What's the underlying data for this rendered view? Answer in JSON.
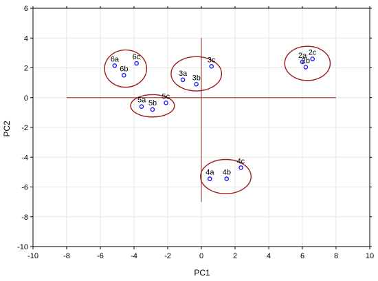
{
  "chart_data": {
    "type": "scatter",
    "title": "",
    "xlabel": "PC1",
    "ylabel": "PC2",
    "xlim": [
      -10,
      10
    ],
    "ylim": [
      -10,
      6
    ],
    "xticks": [
      -10,
      -8,
      -6,
      -4,
      -2,
      0,
      2,
      4,
      6,
      8,
      10
    ],
    "yticks": [
      -10,
      -8,
      -6,
      -4,
      -2,
      0,
      2,
      4,
      6
    ],
    "grid": true,
    "point_color": "#1a1aff",
    "ellipse_color": "#9b1c1c",
    "crosshair_color": "#a34b3a",
    "crosshair": {
      "h_x": [
        -8,
        8
      ],
      "h_y": 0,
      "v_x": 0,
      "v_y": [
        -7,
        4
      ]
    },
    "points": [
      {
        "label": "2a",
        "x": 6.0,
        "y": 2.4
      },
      {
        "label": "2b",
        "x": 6.2,
        "y": 2.05
      },
      {
        "label": "2c",
        "x": 6.6,
        "y": 2.6
      },
      {
        "label": "3a",
        "x": -1.1,
        "y": 1.2
      },
      {
        "label": "3b",
        "x": -0.3,
        "y": 0.9
      },
      {
        "label": "3c",
        "x": 0.6,
        "y": 2.1
      },
      {
        "label": "4a",
        "x": 0.5,
        "y": -5.45
      },
      {
        "label": "4b",
        "x": 1.5,
        "y": -5.45
      },
      {
        "label": "4c",
        "x": 2.35,
        "y": -4.7
      },
      {
        "label": "5a",
        "x": -3.55,
        "y": -0.6
      },
      {
        "label": "5b",
        "x": -2.9,
        "y": -0.8
      },
      {
        "label": "5c",
        "x": -2.1,
        "y": -0.35
      },
      {
        "label": "6a",
        "x": -5.15,
        "y": 2.15
      },
      {
        "label": "6b",
        "x": -4.6,
        "y": 1.5
      },
      {
        "label": "6c",
        "x": -3.85,
        "y": 2.3
      }
    ],
    "clusters": [
      {
        "group": "2",
        "cx": 6.3,
        "cy": 2.3,
        "rx": 1.35,
        "ry": 1.15
      },
      {
        "group": "3",
        "cx": -0.3,
        "cy": 1.6,
        "rx": 1.5,
        "ry": 1.15
      },
      {
        "group": "4",
        "cx": 1.45,
        "cy": -5.3,
        "rx": 1.5,
        "ry": 1.15
      },
      {
        "group": "5",
        "cx": -2.9,
        "cy": -0.55,
        "rx": 1.3,
        "ry": 0.75
      },
      {
        "group": "6",
        "cx": -4.5,
        "cy": 1.95,
        "rx": 1.25,
        "ry": 1.25
      }
    ]
  }
}
